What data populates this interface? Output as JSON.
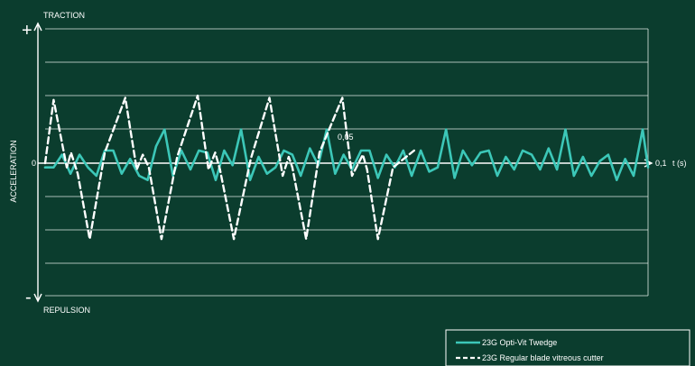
{
  "colors": {
    "background": "#0b3d2e",
    "axis": "#ffffff",
    "grid": "#dfe9e4",
    "series_solid": "#3cc7b8",
    "series_dashed": "#ffffff"
  },
  "chart_data": {
    "type": "line",
    "title": "",
    "ylabel": "ACCELERATION",
    "top_label": "TRACTION",
    "bottom_label": "REPULSION",
    "plus_label": "+",
    "minus_label": "-",
    "zero_label": "0",
    "x_unit_label": "t (s)",
    "x_ticks": [
      {
        "value": 0.05,
        "label": "0,05"
      },
      {
        "value": 0.1,
        "label": "0,1"
      }
    ],
    "xlim": [
      0,
      0.1
    ],
    "ylim": [
      -5,
      5
    ],
    "grid": true,
    "legend_position": "bottom-right",
    "series": [
      {
        "name": "23G Opti-Vit Twedge",
        "style": "solid",
        "x": [
          0,
          0.0014,
          0.0028,
          0.0042,
          0.0057,
          0.0071,
          0.0085,
          0.0099,
          0.0113,
          0.0127,
          0.0141,
          0.0156,
          0.017,
          0.0184,
          0.0198,
          0.0212,
          0.0226,
          0.0241,
          0.0255,
          0.0269,
          0.0283,
          0.0297,
          0.0311,
          0.0325,
          0.034,
          0.0354,
          0.0368,
          0.0382,
          0.0396,
          0.041,
          0.0424,
          0.0439,
          0.0453,
          0.0467,
          0.0481,
          0.0495,
          0.0509,
          0.0524,
          0.0538,
          0.0552,
          0.0566,
          0.058,
          0.0594,
          0.0608,
          0.0623,
          0.0637,
          0.0651,
          0.0665,
          0.0679,
          0.0693,
          0.0708,
          0.0722,
          0.0736,
          0.075,
          0.0764,
          0.0778,
          0.0792,
          0.0807,
          0.0821,
          0.0835,
          0.0849,
          0.0863,
          0.0877,
          0.0892,
          0.0906,
          0.092,
          0.0934,
          0.0948,
          0.0962,
          0.0976,
          0.0991,
          0.1
        ],
        "values": [
          -0.2,
          -0.2,
          0.4,
          -0.5,
          0.4,
          -0.2,
          -0.6,
          0.6,
          0.6,
          -0.5,
          0.2,
          -0.6,
          -0.8,
          0.8,
          1.6,
          -0.6,
          0.6,
          -0.3,
          0.6,
          0.5,
          -0.8,
          0.6,
          -0.1,
          1.6,
          -0.8,
          0.3,
          -0.5,
          -0.2,
          0.6,
          0.4,
          -0.6,
          0.7,
          -0.1,
          1.6,
          -0.5,
          0.4,
          -0.3,
          0.6,
          0.6,
          -0.7,
          0.4,
          -0.2,
          0.6,
          -0.6,
          0.6,
          -0.4,
          -0.2,
          1.6,
          -0.7,
          0.6,
          -0.1,
          0.5,
          0.6,
          -0.6,
          0.3,
          -0.3,
          0.6,
          0.4,
          -0.3,
          0.7,
          -0.3,
          1.6,
          -0.6,
          0.3,
          -0.6,
          0.1,
          0.4,
          -0.8,
          0.2,
          -0.6,
          1.6,
          -0.2
        ]
      },
      {
        "name": "23G Regular blade vitreous cutter",
        "style": "dashed",
        "values": [
          0,
          3.0,
          -0.2,
          0.5,
          -0.5,
          -3.6,
          0.5,
          3.1,
          -0.3,
          0.4,
          -0.2,
          -3.6,
          0.3,
          3.2,
          -0.3,
          0.5,
          -0.3,
          -3.6,
          0.2,
          3.1,
          -0.6,
          0.3,
          -0.2,
          -3.6,
          0.5,
          3.1,
          -0.6,
          0.4,
          -0.3,
          -3.6,
          -0.2,
          0.6
        ],
        "x": [
          0,
          0.0014,
          0.0036,
          0.0043,
          0.0054,
          0.0074,
          0.0099,
          0.0133,
          0.0152,
          0.0162,
          0.0172,
          0.0193,
          0.0219,
          0.0253,
          0.0271,
          0.0282,
          0.029,
          0.0313,
          0.0341,
          0.0372,
          0.0394,
          0.0404,
          0.041,
          0.0433,
          0.0455,
          0.0493,
          0.0509,
          0.0527,
          0.0534,
          0.0552,
          0.0577,
          0.0612
        ]
      }
    ]
  }
}
